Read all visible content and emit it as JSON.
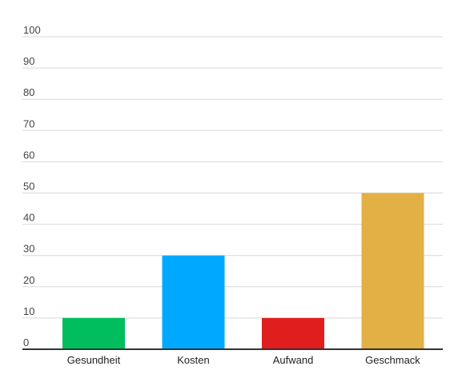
{
  "chart_data": {
    "type": "bar",
    "title": "",
    "xlabel": "",
    "ylabel": "",
    "categories": [
      "Gesundheit",
      "Kosten",
      "Aufwand",
      "Geschmack"
    ],
    "values": [
      10,
      30,
      10,
      50
    ],
    "colors": [
      "#00bd5e",
      "#00a8ff",
      "#e01e1e",
      "#e3b045"
    ],
    "ylim": [
      0,
      100
    ],
    "yticks": [
      "0",
      "10",
      "20",
      "30",
      "40",
      "50",
      "60",
      "70",
      "80",
      "90",
      "100"
    ],
    "grid": true,
    "legend": "none"
  }
}
